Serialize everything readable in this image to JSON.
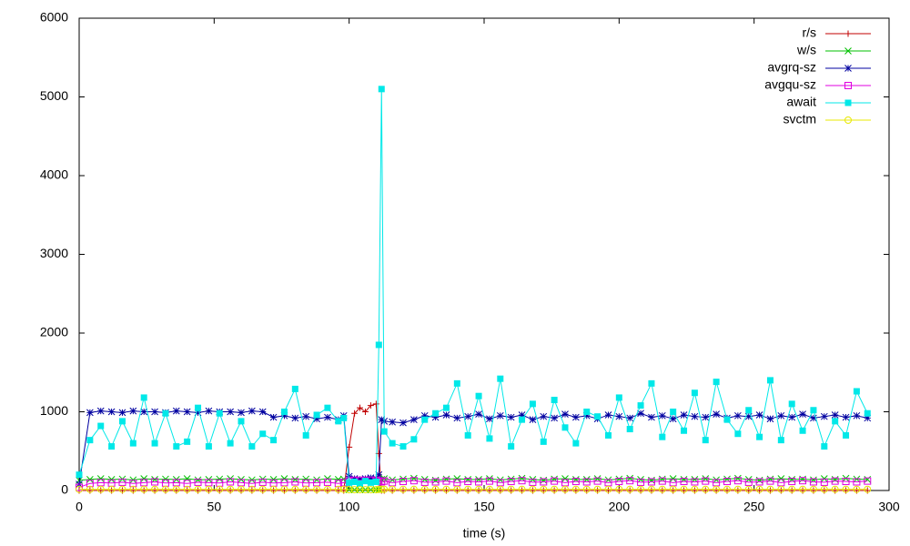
{
  "chart_data": {
    "type": "line",
    "x_label": "time (s)",
    "xlim": [
      0,
      300
    ],
    "xticks": [
      0,
      50,
      100,
      150,
      200,
      250,
      300
    ],
    "ylim": [
      0,
      6000
    ],
    "yticks": [
      0,
      1000,
      2000,
      3000,
      4000,
      5000,
      6000
    ],
    "legend": "top right",
    "x": [
      0,
      4,
      8,
      12,
      16,
      20,
      24,
      28,
      32,
      36,
      40,
      44,
      48,
      52,
      56,
      60,
      64,
      68,
      72,
      76,
      80,
      84,
      88,
      92,
      96,
      98,
      100,
      102,
      104,
      106,
      108,
      110,
      111,
      112,
      113,
      116,
      120,
      124,
      128,
      132,
      136,
      140,
      144,
      148,
      152,
      156,
      160,
      164,
      168,
      172,
      176,
      180,
      184,
      188,
      192,
      196,
      200,
      204,
      208,
      212,
      216,
      220,
      224,
      228,
      232,
      236,
      240,
      244,
      248,
      252,
      256,
      260,
      264,
      268,
      272,
      276,
      280,
      284,
      288,
      292
    ],
    "series": [
      {
        "name": "r/s",
        "color": "#c00000",
        "values": [
          0,
          0,
          0,
          0,
          0,
          0,
          0,
          0,
          0,
          0,
          0,
          0,
          0,
          0,
          0,
          0,
          0,
          0,
          0,
          0,
          0,
          0,
          0,
          0,
          0,
          0,
          550,
          980,
          1050,
          1000,
          1080,
          1100,
          470,
          0,
          0,
          0,
          0,
          0,
          0,
          0,
          0,
          0,
          0,
          0,
          0,
          0,
          0,
          0,
          0,
          0,
          0,
          0,
          0,
          0,
          0,
          0,
          0,
          0,
          0,
          0,
          0,
          0,
          0,
          0,
          0,
          0,
          0,
          0,
          0,
          0,
          0,
          0,
          0,
          0,
          0,
          0,
          0,
          0,
          0,
          0
        ]
      },
      {
        "name": "w/s",
        "color": "#00c000",
        "values": [
          130,
          140,
          150,
          140,
          145,
          135,
          150,
          140,
          145,
          140,
          150,
          135,
          140,
          145,
          150,
          140,
          135,
          145,
          140,
          150,
          140,
          145,
          135,
          150,
          140,
          145,
          10,
          10,
          10,
          10,
          10,
          10,
          10,
          140,
          150,
          135,
          145,
          155,
          140,
          130,
          145,
          150,
          140,
          140,
          150,
          135,
          145,
          155,
          140,
          130,
          145,
          150,
          140,
          140,
          150,
          135,
          145,
          155,
          140,
          130,
          145,
          150,
          140,
          140,
          150,
          135,
          145,
          155,
          140,
          130,
          145,
          150,
          140,
          145,
          135,
          150,
          140,
          155,
          145,
          140
        ]
      },
      {
        "name": "avgrq-sz",
        "color": "#0000a0",
        "values": [
          80,
          990,
          1010,
          1000,
          990,
          1010,
          1000,
          1000,
          990,
          1010,
          1000,
          990,
          1010,
          1000,
          1000,
          990,
          1010,
          1000,
          930,
          950,
          920,
          940,
          910,
          930,
          900,
          950,
          180,
          150,
          140,
          150,
          160,
          150,
          200,
          900,
          880,
          870,
          860,
          900,
          950,
          930,
          960,
          920,
          940,
          970,
          910,
          950,
          930,
          960,
          900,
          940,
          920,
          970,
          930,
          950,
          910,
          960,
          940,
          920,
          980,
          930,
          950,
          910,
          960,
          940,
          930,
          970,
          920,
          950,
          940,
          960,
          910,
          950,
          930,
          970,
          920,
          940,
          960,
          930,
          950,
          920
        ]
      },
      {
        "name": "avgqu-sz",
        "color": "#e000e0",
        "values": [
          40,
          90,
          100,
          95,
          105,
          90,
          100,
          110,
          95,
          100,
          90,
          105,
          100,
          95,
          110,
          100,
          90,
          105,
          95,
          100,
          110,
          95,
          100,
          105,
          90,
          100,
          130,
          130,
          130,
          130,
          130,
          130,
          120,
          110,
          120,
          100,
          115,
          125,
          105,
          110,
          120,
          100,
          115,
          110,
          120,
          100,
          115,
          125,
          105,
          110,
          120,
          100,
          115,
          110,
          120,
          100,
          115,
          125,
          105,
          110,
          120,
          100,
          115,
          110,
          120,
          100,
          115,
          125,
          105,
          110,
          120,
          100,
          115,
          125,
          110,
          105,
          120,
          115,
          110,
          120
        ]
      },
      {
        "name": "await",
        "color": "#00e8e8",
        "values": [
          200,
          640,
          820,
          560,
          880,
          600,
          1180,
          600,
          980,
          560,
          620,
          1050,
          560,
          980,
          600,
          880,
          560,
          720,
          640,
          1000,
          1290,
          700,
          960,
          1050,
          880,
          920,
          100,
          110,
          90,
          120,
          100,
          110,
          1850,
          5100,
          750,
          600,
          560,
          650,
          900,
          980,
          1050,
          1360,
          700,
          1200,
          660,
          1420,
          560,
          900,
          1100,
          620,
          1150,
          800,
          600,
          1000,
          940,
          700,
          1180,
          780,
          1080,
          1360,
          680,
          1000,
          760,
          1240,
          640,
          1380,
          900,
          720,
          1020,
          680,
          1400,
          640,
          1100,
          760,
          1020,
          560,
          880,
          700,
          1260,
          980
        ]
      },
      {
        "name": "svctm",
        "color": "#e8e800",
        "values": [
          15,
          15,
          15,
          15,
          15,
          15,
          15,
          15,
          15,
          15,
          15,
          15,
          15,
          15,
          15,
          15,
          15,
          15,
          15,
          15,
          15,
          15,
          15,
          15,
          15,
          15,
          10,
          10,
          10,
          10,
          10,
          10,
          15,
          15,
          15,
          15,
          15,
          15,
          15,
          15,
          15,
          15,
          15,
          15,
          15,
          15,
          15,
          15,
          15,
          15,
          15,
          15,
          15,
          15,
          15,
          15,
          15,
          15,
          15,
          15,
          15,
          15,
          15,
          15,
          15,
          15,
          15,
          15,
          15,
          15,
          15,
          15,
          15,
          15,
          15,
          15,
          15,
          15,
          15,
          15
        ]
      }
    ]
  }
}
